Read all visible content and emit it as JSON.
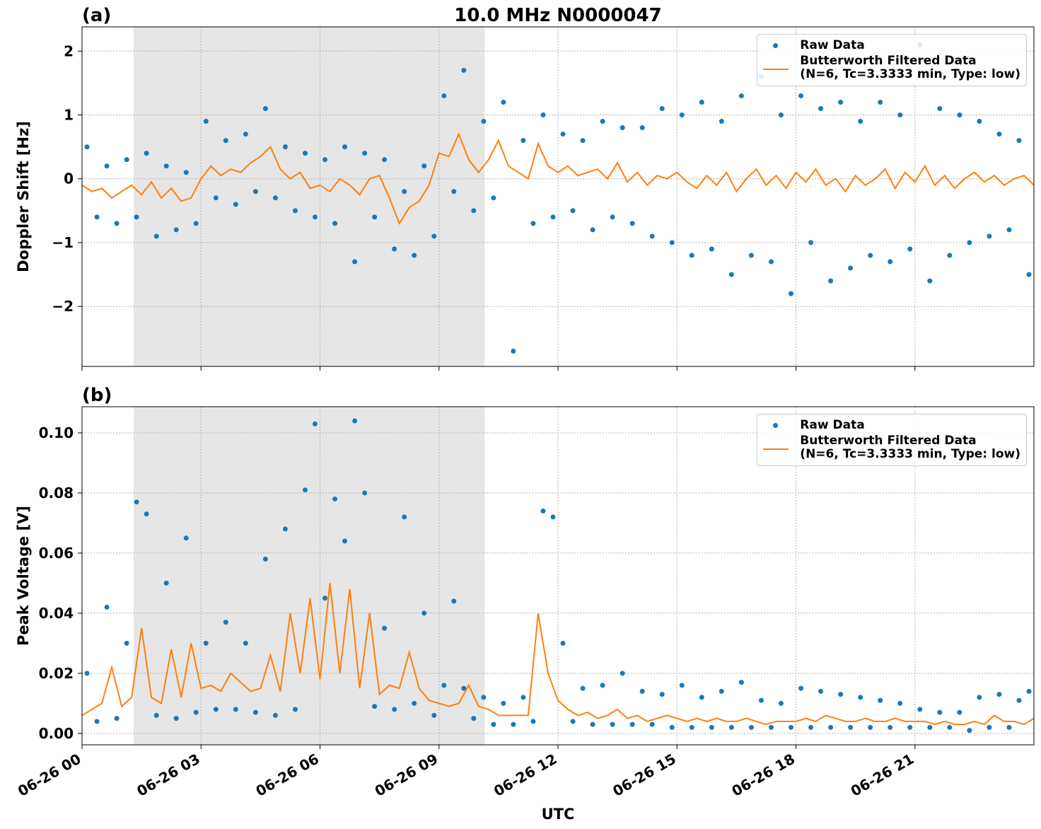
{
  "chart_data": [
    {
      "type": "scatter",
      "panel_label": "(a)",
      "title": "10.0 MHz N0000047",
      "ylabel": "Doppler Shift [Hz]",
      "xlim": [
        0,
        24
      ],
      "ylim": [
        -2.94,
        2.38
      ],
      "grid": true,
      "legend": "upper right",
      "xticklabels": false,
      "shaded_span": [
        1.3,
        10.15
      ],
      "xticks": [
        {
          "value": 0,
          "label": "06-26 00"
        },
        {
          "value": 3,
          "label": "06-26 03"
        },
        {
          "value": 6,
          "label": "06-26 06"
        },
        {
          "value": 9,
          "label": "06-26 09"
        },
        {
          "value": 12,
          "label": "06-26 12"
        },
        {
          "value": 15,
          "label": "06-26 15"
        },
        {
          "value": 18,
          "label": "06-26 18"
        },
        {
          "value": 21,
          "label": "06-26 21"
        }
      ],
      "yticks": [
        {
          "value": -2,
          "label": "−2"
        },
        {
          "value": -1,
          "label": "−1"
        },
        0,
        1,
        2
      ],
      "series": [
        {
          "name": "Raw Data",
          "type": "scatter",
          "color": "#1f77b4",
          "x": [
            0.125,
            0.375,
            0.625,
            0.875,
            1.125,
            1.375,
            1.625,
            1.875,
            2.125,
            2.375,
            2.625,
            2.875,
            3.125,
            3.375,
            3.625,
            3.875,
            4.125,
            4.375,
            4.625,
            4.875,
            5.125,
            5.375,
            5.625,
            5.875,
            6.125,
            6.375,
            6.625,
            6.875,
            7.125,
            7.375,
            7.625,
            7.875,
            8.125,
            8.375,
            8.625,
            8.875,
            9.125,
            9.375,
            9.625,
            9.875,
            10.125,
            10.375,
            10.625,
            10.875,
            11.125,
            11.375,
            11.625,
            11.875,
            12.125,
            12.375,
            12.625,
            12.875,
            13.125,
            13.375,
            13.625,
            13.875,
            14.125,
            14.375,
            14.625,
            14.875,
            15.125,
            15.375,
            15.625,
            15.875,
            16.125,
            16.375,
            16.625,
            16.875,
            17.125,
            17.375,
            17.625,
            17.875,
            18.125,
            18.375,
            18.625,
            18.875,
            19.125,
            19.375,
            19.625,
            19.875,
            20.125,
            20.375,
            20.625,
            20.875,
            21.125,
            21.375,
            21.625,
            21.875,
            22.125,
            22.375,
            22.625,
            22.875,
            23.125,
            23.375,
            23.625,
            23.875
          ],
          "values": [
            0.5,
            -0.6,
            0.2,
            -0.7,
            0.3,
            -0.6,
            0.4,
            -0.9,
            0.2,
            -0.8,
            0.1,
            -0.7,
            0.9,
            -0.3,
            0.6,
            -0.4,
            0.7,
            -0.2,
            1.1,
            -0.3,
            0.5,
            -0.5,
            0.4,
            -0.6,
            0.3,
            -0.7,
            0.5,
            -1.3,
            0.4,
            -0.6,
            0.3,
            -1.1,
            -0.2,
            -1.2,
            0.2,
            -0.9,
            1.3,
            -0.2,
            1.7,
            -0.5,
            0.9,
            -0.3,
            1.2,
            -2.7,
            0.6,
            -0.7,
            1.0,
            -0.6,
            0.7,
            -0.5,
            0.6,
            -0.8,
            0.9,
            -0.6,
            0.8,
            -0.7,
            0.8,
            -0.9,
            1.1,
            -1.0,
            1.0,
            -1.2,
            1.2,
            -1.1,
            0.9,
            -1.5,
            1.3,
            -1.2,
            1.6,
            -1.3,
            1.0,
            -1.8,
            1.3,
            -1.0,
            1.1,
            -1.6,
            1.2,
            -1.4,
            0.9,
            -1.2,
            1.2,
            -1.3,
            1.0,
            -1.1,
            2.1,
            -1.6,
            1.1,
            -1.2,
            1.0,
            -1.0,
            0.9,
            -0.9,
            0.7,
            -0.8,
            0.6,
            -1.5
          ]
        },
        {
          "name": "Butterworth Filtered Data\n(N=6, Tc=3.3333 min, Type: low)",
          "type": "line",
          "color": "#ff7f0e",
          "x": [
            0,
            0.25,
            0.5,
            0.75,
            1,
            1.25,
            1.5,
            1.75,
            2,
            2.25,
            2.5,
            2.75,
            3,
            3.25,
            3.5,
            3.75,
            4,
            4.25,
            4.5,
            4.75,
            5,
            5.25,
            5.5,
            5.75,
            6,
            6.25,
            6.5,
            6.75,
            7,
            7.25,
            7.5,
            7.75,
            8,
            8.25,
            8.5,
            8.75,
            9,
            9.25,
            9.5,
            9.75,
            10,
            10.25,
            10.5,
            10.75,
            11,
            11.25,
            11.5,
            11.75,
            12,
            12.25,
            12.5,
            12.75,
            13,
            13.25,
            13.5,
            13.75,
            14,
            14.25,
            14.5,
            14.75,
            15,
            15.25,
            15.5,
            15.75,
            16,
            16.25,
            16.5,
            16.75,
            17,
            17.25,
            17.5,
            17.75,
            18,
            18.25,
            18.5,
            18.75,
            19,
            19.25,
            19.5,
            19.75,
            20,
            20.25,
            20.5,
            20.75,
            21,
            21.25,
            21.5,
            21.75,
            22,
            22.25,
            22.5,
            22.75,
            23,
            23.25,
            23.5,
            23.75,
            24
          ],
          "values": [
            -0.1,
            -0.2,
            -0.15,
            -0.3,
            -0.2,
            -0.1,
            -0.25,
            -0.05,
            -0.3,
            -0.15,
            -0.35,
            -0.3,
            0,
            0.2,
            0.05,
            0.15,
            0.1,
            0.25,
            0.35,
            0.5,
            0.15,
            0,
            0.1,
            -0.15,
            -0.1,
            -0.2,
            0,
            -0.1,
            -0.25,
            0,
            0.05,
            -0.3,
            -0.7,
            -0.45,
            -0.35,
            -0.1,
            0.4,
            0.35,
            0.7,
            0.3,
            0.1,
            0.3,
            0.6,
            0.2,
            0.1,
            0,
            0.55,
            0.2,
            0.1,
            0.2,
            0.05,
            0.1,
            0.15,
            0,
            0.25,
            -0.05,
            0.1,
            -0.1,
            0.05,
            0,
            0.1,
            -0.05,
            -0.15,
            0.05,
            -0.1,
            0.1,
            -0.2,
            0,
            0.15,
            -0.1,
            0.05,
            -0.15,
            0.1,
            -0.05,
            0.15,
            -0.1,
            0,
            -0.2,
            0.05,
            -0.1,
            0,
            0.15,
            -0.15,
            0.1,
            -0.05,
            0.2,
            -0.1,
            0.05,
            -0.15,
            0,
            0.1,
            -0.05,
            0.05,
            -0.1,
            0,
            0.05,
            -0.1
          ]
        }
      ]
    },
    {
      "type": "scatter",
      "panel_label": "(b)",
      "ylabel": "Peak Voltage [V]",
      "xlabel": "UTC",
      "xlim": [
        0,
        24
      ],
      "ylim": [
        -0.0038,
        0.1087
      ],
      "grid": true,
      "legend": "upper right",
      "xticklabels": true,
      "shaded_span": [
        1.3,
        10.15
      ],
      "xticks": [
        {
          "value": 0,
          "label": "06-26 00"
        },
        {
          "value": 3,
          "label": "06-26 03"
        },
        {
          "value": 6,
          "label": "06-26 06"
        },
        {
          "value": 9,
          "label": "06-26 09"
        },
        {
          "value": 12,
          "label": "06-26 12"
        },
        {
          "value": 15,
          "label": "06-26 15"
        },
        {
          "value": 18,
          "label": "06-26 18"
        },
        {
          "value": 21,
          "label": "06-26 21"
        }
      ],
      "yticks": [
        {
          "value": 0,
          "label": "0.00"
        },
        {
          "value": 0.02,
          "label": "0.02"
        },
        {
          "value": 0.04,
          "label": "0.04"
        },
        {
          "value": 0.06,
          "label": "0.06"
        },
        {
          "value": 0.08,
          "label": "0.08"
        },
        {
          "value": 0.1,
          "label": "0.10"
        }
      ],
      "series": [
        {
          "name": "Raw Data",
          "type": "scatter",
          "color": "#1f77b4",
          "x": [
            0.125,
            0.375,
            0.625,
            0.875,
            1.125,
            1.375,
            1.625,
            1.875,
            2.125,
            2.375,
            2.625,
            2.875,
            3.125,
            3.375,
            3.625,
            3.875,
            4.125,
            4.375,
            4.625,
            4.875,
            5.125,
            5.375,
            5.625,
            5.875,
            6.125,
            6.375,
            6.625,
            6.875,
            7.125,
            7.375,
            7.625,
            7.875,
            8.125,
            8.375,
            8.625,
            8.875,
            9.125,
            9.375,
            9.625,
            9.875,
            10.125,
            10.375,
            10.625,
            10.875,
            11.125,
            11.375,
            11.625,
            11.875,
            12.125,
            12.375,
            12.625,
            12.875,
            13.125,
            13.375,
            13.625,
            13.875,
            14.125,
            14.375,
            14.625,
            14.875,
            15.125,
            15.375,
            15.625,
            15.875,
            16.125,
            16.375,
            16.625,
            16.875,
            17.125,
            17.375,
            17.625,
            17.875,
            18.125,
            18.375,
            18.625,
            18.875,
            19.125,
            19.375,
            19.625,
            19.875,
            20.125,
            20.375,
            20.625,
            20.875,
            21.125,
            21.375,
            21.625,
            21.875,
            22.125,
            22.375,
            22.625,
            22.875,
            23.125,
            23.375,
            23.625,
            23.875
          ],
          "values": [
            0.02,
            0.004,
            0.042,
            0.005,
            0.03,
            0.077,
            0.073,
            0.006,
            0.05,
            0.005,
            0.065,
            0.007,
            0.03,
            0.008,
            0.037,
            0.008,
            0.03,
            0.007,
            0.058,
            0.006,
            0.068,
            0.008,
            0.081,
            0.103,
            0.045,
            0.078,
            0.064,
            0.104,
            0.08,
            0.009,
            0.035,
            0.008,
            0.072,
            0.01,
            0.04,
            0.006,
            0.016,
            0.044,
            0.015,
            0.005,
            0.012,
            0.003,
            0.01,
            0.003,
            0.012,
            0.004,
            0.074,
            0.072,
            0.03,
            0.004,
            0.015,
            0.003,
            0.016,
            0.003,
            0.02,
            0.003,
            0.014,
            0.003,
            0.013,
            0.002,
            0.016,
            0.002,
            0.012,
            0.002,
            0.014,
            0.002,
            0.017,
            0.002,
            0.011,
            0.002,
            0.01,
            0.002,
            0.015,
            0.002,
            0.014,
            0.002,
            0.013,
            0.002,
            0.012,
            0.002,
            0.011,
            0.002,
            0.01,
            0.002,
            0.008,
            0.002,
            0.007,
            0.002,
            0.007,
            0.001,
            0.012,
            0.002,
            0.013,
            0.002,
            0.011,
            0.014
          ]
        },
        {
          "name": "Butterworth Filtered Data\n(N=6, Tc=3.3333 min, Type: low)",
          "type": "line",
          "color": "#ff7f0e",
          "x": [
            0,
            0.25,
            0.5,
            0.75,
            1,
            1.25,
            1.5,
            1.75,
            2,
            2.25,
            2.5,
            2.75,
            3,
            3.25,
            3.5,
            3.75,
            4,
            4.25,
            4.5,
            4.75,
            5,
            5.25,
            5.5,
            5.75,
            6,
            6.25,
            6.5,
            6.75,
            7,
            7.25,
            7.5,
            7.75,
            8,
            8.25,
            8.5,
            8.75,
            9,
            9.25,
            9.5,
            9.75,
            10,
            10.25,
            10.5,
            10.75,
            11,
            11.25,
            11.5,
            11.75,
            12,
            12.25,
            12.5,
            12.75,
            13,
            13.25,
            13.5,
            13.75,
            14,
            14.25,
            14.5,
            14.75,
            15,
            15.25,
            15.5,
            15.75,
            16,
            16.25,
            16.5,
            16.75,
            17,
            17.25,
            17.5,
            17.75,
            18,
            18.25,
            18.5,
            18.75,
            19,
            19.25,
            19.5,
            19.75,
            20,
            20.25,
            20.5,
            20.75,
            21,
            21.25,
            21.5,
            21.75,
            22,
            22.25,
            22.5,
            22.75,
            23,
            23.25,
            23.5,
            23.75,
            24
          ],
          "values": [
            0.006,
            0.008,
            0.01,
            0.022,
            0.009,
            0.012,
            0.035,
            0.012,
            0.01,
            0.028,
            0.012,
            0.03,
            0.015,
            0.016,
            0.014,
            0.02,
            0.017,
            0.014,
            0.015,
            0.026,
            0.014,
            0.04,
            0.02,
            0.045,
            0.018,
            0.05,
            0.02,
            0.048,
            0.015,
            0.04,
            0.013,
            0.016,
            0.015,
            0.027,
            0.015,
            0.011,
            0.01,
            0.009,
            0.01,
            0.016,
            0.009,
            0.008,
            0.006,
            0.006,
            0.006,
            0.006,
            0.04,
            0.02,
            0.011,
            0.008,
            0.006,
            0.007,
            0.005,
            0.006,
            0.008,
            0.005,
            0.006,
            0.004,
            0.005,
            0.006,
            0.005,
            0.004,
            0.005,
            0.004,
            0.005,
            0.004,
            0.004,
            0.005,
            0.004,
            0.003,
            0.004,
            0.004,
            0.004,
            0.005,
            0.004,
            0.006,
            0.005,
            0.004,
            0.004,
            0.005,
            0.004,
            0.004,
            0.005,
            0.004,
            0.004,
            0.004,
            0.003,
            0.004,
            0.003,
            0.003,
            0.004,
            0.003,
            0.006,
            0.004,
            0.004,
            0.003,
            0.005
          ]
        }
      ]
    }
  ]
}
